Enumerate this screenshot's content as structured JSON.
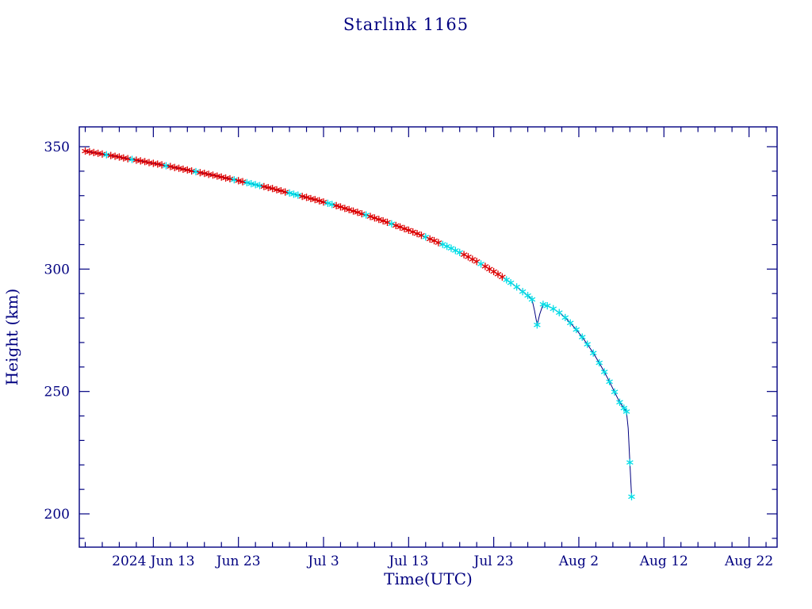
{
  "page": {
    "background": "#ffffff"
  },
  "chart_data": {
    "type": "line",
    "title": "Starlink 1165",
    "xlabel": "Time(UTC)",
    "ylabel": "Height (km)",
    "axis_color": "#000080",
    "line_color": "#000080",
    "marker_colors": {
      "r": "#dd0000",
      "c": "#00dde6"
    },
    "x_unit": "days since 2024-06-01",
    "x_domain_days": [
      3.3,
      85.3
    ],
    "y_domain": [
      186.4,
      358.1
    ],
    "x_ticks": [
      {
        "day": 12,
        "label": "2024 Jun 13"
      },
      {
        "day": 22,
        "label": "Jun 23"
      },
      {
        "day": 32,
        "label": "Jul  3"
      },
      {
        "day": 42,
        "label": "Jul 13"
      },
      {
        "day": 52,
        "label": "Jul 23"
      },
      {
        "day": 62,
        "label": "Aug  2"
      },
      {
        "day": 72,
        "label": "Aug 12"
      },
      {
        "day": 82,
        "label": "Aug 22"
      }
    ],
    "x_minor_step_days": 2,
    "y_ticks": [
      200,
      250,
      300,
      350
    ],
    "y_minor_step": 10,
    "legend": "none",
    "grid": "off",
    "points": [
      [
        4,
        348.2,
        "r"
      ],
      [
        4.5,
        347.9,
        "r"
      ],
      [
        5,
        347.6,
        "r"
      ],
      [
        5.5,
        347.3,
        "r"
      ],
      [
        6,
        347.0,
        "r"
      ],
      [
        6.5,
        346.7,
        "c"
      ],
      [
        7,
        346.4,
        "r"
      ],
      [
        7.5,
        346.1,
        "r"
      ],
      [
        8,
        345.8,
        "r"
      ],
      [
        8.5,
        345.4,
        "r"
      ],
      [
        9,
        345.1,
        "r"
      ],
      [
        9.5,
        344.8,
        "c"
      ],
      [
        10,
        344.5,
        "r"
      ],
      [
        10.5,
        344.2,
        "r"
      ],
      [
        11,
        343.9,
        "r"
      ],
      [
        11.5,
        343.5,
        "r"
      ],
      [
        12,
        343.2,
        "r"
      ],
      [
        12.5,
        342.9,
        "r"
      ],
      [
        13,
        342.6,
        "r"
      ],
      [
        13.5,
        342.2,
        "c"
      ],
      [
        14,
        341.9,
        "r"
      ],
      [
        14.5,
        341.5,
        "r"
      ],
      [
        15,
        341.2,
        "r"
      ],
      [
        15.5,
        340.8,
        "r"
      ],
      [
        16,
        340.5,
        "r"
      ],
      [
        16.5,
        340.1,
        "r"
      ],
      [
        17,
        339.8,
        "c"
      ],
      [
        17.5,
        339.4,
        "r"
      ],
      [
        18,
        339.1,
        "r"
      ],
      [
        18.5,
        338.7,
        "r"
      ],
      [
        19,
        338.4,
        "r"
      ],
      [
        19.5,
        338.0,
        "r"
      ],
      [
        20,
        337.6,
        "r"
      ],
      [
        20.5,
        337.2,
        "r"
      ],
      [
        21,
        336.9,
        "r"
      ],
      [
        21.5,
        336.5,
        "c"
      ],
      [
        22,
        336.1,
        "r"
      ],
      [
        22.5,
        335.7,
        "r"
      ],
      [
        23,
        335.3,
        "c"
      ],
      [
        23.5,
        334.9,
        "c"
      ],
      [
        24,
        334.5,
        "c"
      ],
      [
        24.5,
        334.1,
        "c"
      ],
      [
        25,
        333.7,
        "r"
      ],
      [
        25.5,
        333.3,
        "r"
      ],
      [
        26,
        332.9,
        "r"
      ],
      [
        26.5,
        332.4,
        "r"
      ],
      [
        27,
        332.0,
        "r"
      ],
      [
        27.5,
        331.5,
        "r"
      ],
      [
        28,
        331.1,
        "c"
      ],
      [
        28.5,
        330.6,
        "c"
      ],
      [
        29,
        330.2,
        "c"
      ],
      [
        29.5,
        329.7,
        "r"
      ],
      [
        30,
        329.3,
        "r"
      ],
      [
        30.5,
        328.8,
        "r"
      ],
      [
        31,
        328.4,
        "r"
      ],
      [
        31.5,
        327.9,
        "r"
      ],
      [
        32,
        327.4,
        "r"
      ],
      [
        32.5,
        326.9,
        "c"
      ],
      [
        33,
        326.4,
        "c"
      ],
      [
        33.5,
        325.9,
        "r"
      ],
      [
        34,
        325.4,
        "r"
      ],
      [
        34.5,
        324.8,
        "r"
      ],
      [
        35,
        324.3,
        "r"
      ],
      [
        35.5,
        323.7,
        "r"
      ],
      [
        36,
        323.2,
        "r"
      ],
      [
        36.5,
        322.6,
        "r"
      ],
      [
        37,
        322.1,
        "c"
      ],
      [
        37.5,
        321.5,
        "r"
      ],
      [
        38,
        320.9,
        "r"
      ],
      [
        38.5,
        320.3,
        "r"
      ],
      [
        39,
        319.7,
        "r"
      ],
      [
        39.5,
        319.1,
        "r"
      ],
      [
        40,
        318.5,
        "c"
      ],
      [
        40.5,
        317.8,
        "r"
      ],
      [
        41,
        317.2,
        "r"
      ],
      [
        41.5,
        316.5,
        "r"
      ],
      [
        42,
        315.9,
        "r"
      ],
      [
        42.5,
        315.2,
        "r"
      ],
      [
        43,
        314.5,
        "r"
      ],
      [
        43.5,
        313.8,
        "r"
      ],
      [
        44,
        313.1,
        "c"
      ],
      [
        44.5,
        312.3,
        "r"
      ],
      [
        45,
        311.6,
        "r"
      ],
      [
        45.5,
        310.8,
        "r"
      ],
      [
        46,
        310.1,
        "c"
      ],
      [
        46.5,
        309.3,
        "c"
      ],
      [
        47,
        308.5,
        "c"
      ],
      [
        47.5,
        307.6,
        "c"
      ],
      [
        48,
        306.8,
        "c"
      ],
      [
        48.5,
        305.9,
        "r"
      ],
      [
        49,
        305.0,
        "r"
      ],
      [
        49.5,
        304.0,
        "r"
      ],
      [
        50,
        303.1,
        "r"
      ],
      [
        50.5,
        302.1,
        "c"
      ],
      [
        51,
        301.1,
        "r"
      ],
      [
        51.5,
        300.0,
        "r"
      ],
      [
        52,
        299.0,
        "r"
      ],
      [
        52.5,
        297.9,
        "r"
      ],
      [
        53,
        296.8,
        "r"
      ],
      [
        53.5,
        295.6,
        "c"
      ],
      [
        54,
        294.4,
        "c"
      ],
      [
        54.7,
        292.7,
        "c"
      ],
      [
        55.4,
        290.8,
        "c"
      ],
      [
        56,
        289.2,
        "c"
      ],
      [
        56.5,
        287.6,
        "c"
      ],
      [
        56.8,
        283.0,
        ""
      ],
      [
        57.1,
        277.2,
        "c"
      ],
      [
        57.4,
        281.5,
        ""
      ],
      [
        57.8,
        285.6,
        "c"
      ],
      [
        58.3,
        285.0,
        "c"
      ],
      [
        59,
        283.8,
        "c"
      ],
      [
        59.7,
        282.2,
        "c"
      ],
      [
        60.4,
        280.2,
        "c"
      ],
      [
        61,
        278.0,
        "c"
      ],
      [
        61.7,
        275.3,
        "c"
      ],
      [
        62.4,
        272.2,
        "c"
      ],
      [
        63,
        269.3,
        "c"
      ],
      [
        63.7,
        265.7,
        "c"
      ],
      [
        64.4,
        261.7,
        "c"
      ],
      [
        65,
        258.0,
        "c"
      ],
      [
        65.6,
        254.0,
        "c"
      ],
      [
        66.2,
        249.8,
        "c"
      ],
      [
        66.8,
        245.6,
        "c"
      ],
      [
        67.3,
        243.2,
        "c"
      ],
      [
        67.6,
        241.8,
        "c"
      ],
      [
        67.8,
        235.0,
        ""
      ],
      [
        68.0,
        221.0,
        "c"
      ],
      [
        68.2,
        207.0,
        "c"
      ]
    ]
  }
}
